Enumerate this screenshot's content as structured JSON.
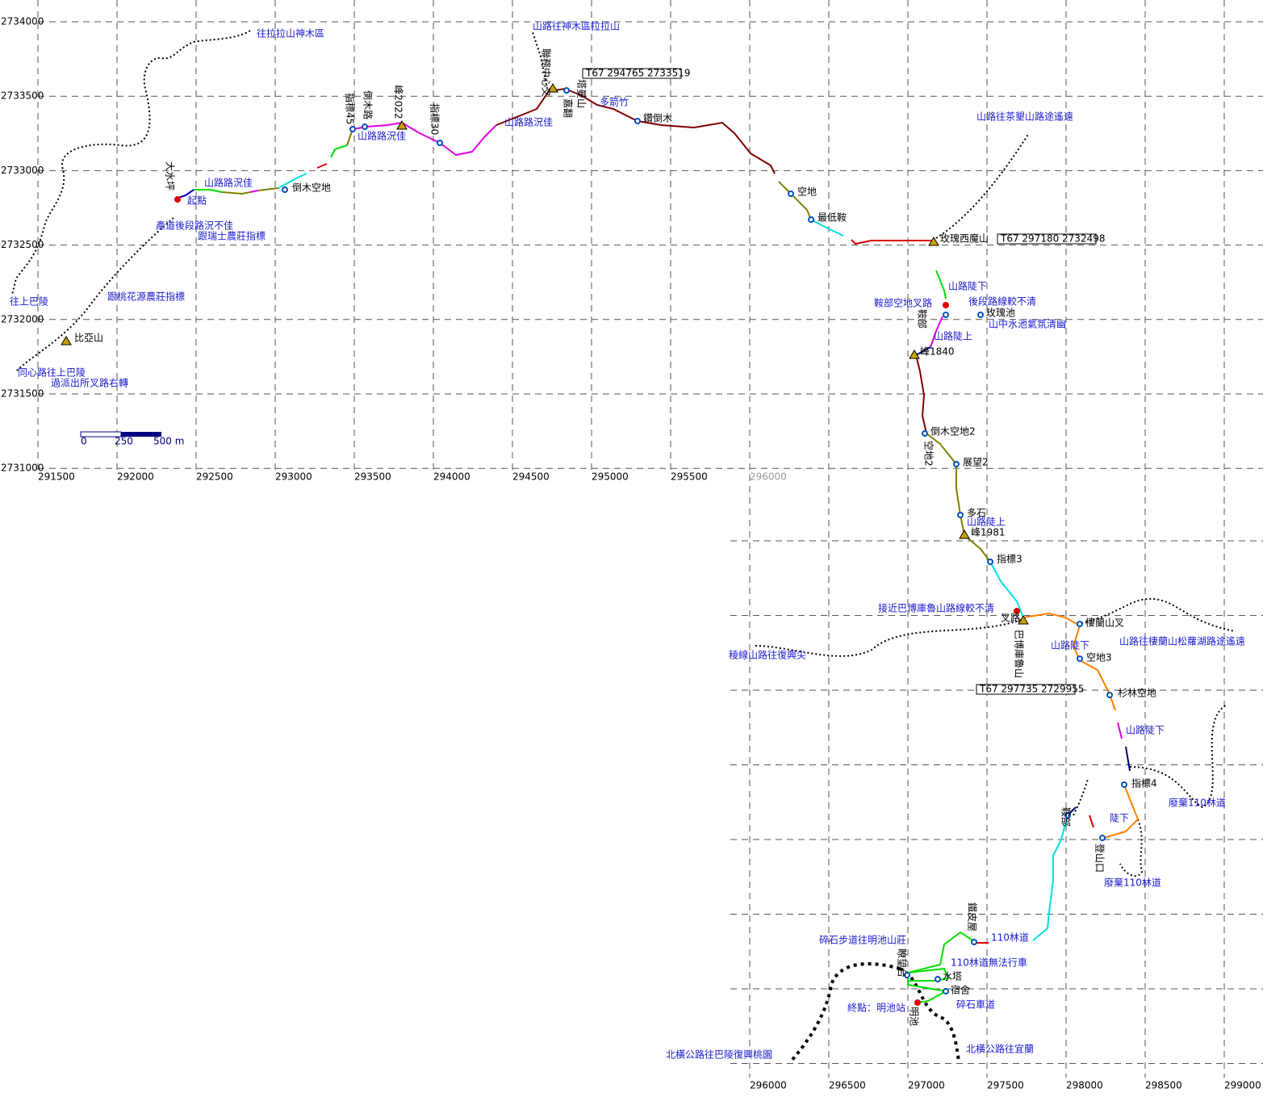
{
  "coordinates": {
    "northing_labels": [
      "2734000",
      "2733500",
      "2733000",
      "2732500",
      "2732000",
      "2731500",
      "2731000"
    ],
    "easting_labels_top": [
      "291500",
      "292000",
      "292500",
      "293000",
      "293500",
      "294000",
      "294500",
      "295000",
      "295500",
      "296000"
    ],
    "easting_labels_bottom": [
      "296000",
      "296500",
      "297000",
      "297500",
      "298000",
      "298500",
      "299000"
    ]
  },
  "scale_bar": [
    "0",
    "250",
    "500 m"
  ],
  "coordinate_boxes": [
    "T67  294765  2733519",
    "T67  297180  2732498",
    "T67  297735  2729955"
  ],
  "labels": [
    "往拉拉山神木區",
    "山路往神木區拉拉山",
    "塔曼山",
    "聯務中心叉",
    "嘉翻",
    "多箭竹",
    "鑽倒木",
    "山路路況佳",
    "指標30",
    "峰2022",
    "倒木路",
    "指標45",
    "山路路況佳",
    "倒木空地",
    "山路路況佳",
    "大水坪",
    "起點",
    "產道後段路況不佳",
    "跟瑞士農莊指標",
    "往上巴陵",
    "跟桃花源農莊指標",
    "比亞山",
    "同心路往上巴陵",
    "過派出所叉路右轉",
    "山路往茶墾山路途遙遠",
    "空地",
    "最低鞍",
    "玫瑰西魔山",
    "山路陡下",
    "鞍部空地叉路",
    "後段路線較不清",
    "鞍部",
    "玫瑰池",
    "山中水池氣氛清幽",
    "山路陡上",
    "峰1840",
    "倒木空地2",
    "空地2",
    "展望2",
    "多石",
    "山路陡上",
    "峰1981",
    "指標3",
    "接近巴博庫魯山路線較不清",
    "巴博庫魯山",
    "叉路",
    "棲蘭山叉",
    "山路往棲蘭山松蘿湖路途遙遠",
    "稜線山路往復興尖",
    "山路陡下",
    "空地3",
    "杉林空地",
    "山路陡下",
    "指標4",
    "廢棄110林道",
    "陡下",
    "鞍部",
    "登山口",
    "廢棄110林道",
    "鐵皮屋",
    "110林道",
    "碎石步道往明池山莊",
    "瞭望台",
    "110林道無法行車",
    "水塔",
    "宿舍",
    "終點：明池站",
    "碎石車道",
    "明池",
    "北橫公路往宜蘭",
    "北橫公路往巴陵復興桃園"
  ]
}
